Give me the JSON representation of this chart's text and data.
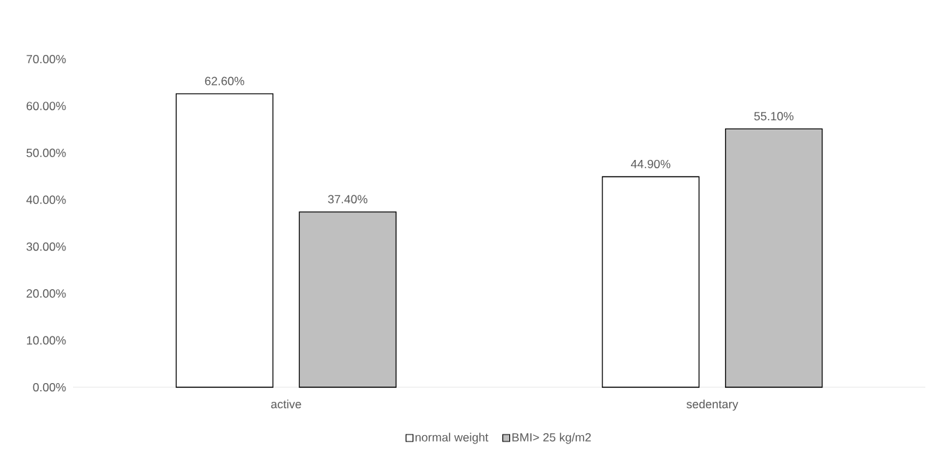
{
  "chart_data": {
    "type": "bar",
    "categories": [
      "active",
      "sedentary"
    ],
    "series": [
      {
        "name": "normal weight",
        "color": "#ffffff",
        "values": [
          62.6,
          44.9
        ],
        "value_labels": [
          "62.60%",
          "44.90%"
        ]
      },
      {
        "name": "BMI> 25 kg/m2",
        "color": "#bfbfbf",
        "values": [
          37.4,
          55.1
        ],
        "value_labels": [
          "37.40%",
          "55.10%"
        ]
      }
    ],
    "ylim": [
      0,
      70
    ],
    "yticks": [
      {
        "value": 0,
        "label": "0.00%"
      },
      {
        "value": 10,
        "label": "10.00%"
      },
      {
        "value": 20,
        "label": "20.00%"
      },
      {
        "value": 30,
        "label": "30.00%"
      },
      {
        "value": 40,
        "label": "40.00%"
      },
      {
        "value": 50,
        "label": "50.00%"
      },
      {
        "value": 60,
        "label": "60.00%"
      },
      {
        "value": 70,
        "label": "70.00%"
      }
    ],
    "legend": "bottom"
  }
}
